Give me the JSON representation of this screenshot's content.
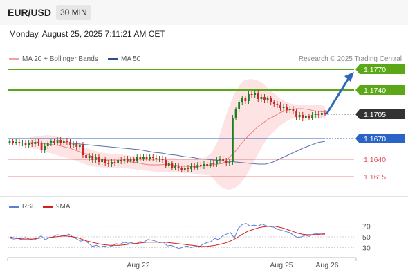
{
  "header": {
    "pair": "EUR/USD",
    "timeframe": "30 MIN"
  },
  "datetime": "Monday, August 25, 2025 7:11:21 AM CET",
  "legend": {
    "ma20_label": "MA 20 + Bollinger Bands",
    "ma50_label": "MA 50",
    "rsi_label": "RSI",
    "ma9_label": "9MA"
  },
  "research": "Research © 2025 Trading Central",
  "colors": {
    "bull": "#1e7d1e",
    "bear": "#c62828",
    "resistance": "#5aa817",
    "support": "#2b63c6",
    "minor_level": "#e05555",
    "bollinger_fill": "#fde0e0",
    "ma20": "#f08080",
    "ma50": "#5a6fa8",
    "current": "#333333",
    "arrow": "#2f67b8",
    "rsi": "#5b7fd6",
    "ma9": "#d32020"
  },
  "chart_data": [
    {
      "type": "candlestick",
      "title": "",
      "x_tick_labels": [
        "Aug 22",
        "Aug 25",
        "Aug 26"
      ],
      "ylim": [
        1.159,
        1.179
      ],
      "price_series": [
        1.1666,
        1.1664,
        1.1665,
        1.1663,
        1.1664,
        1.166,
        1.1664,
        1.1662,
        1.1665,
        1.1663,
        1.1653,
        1.1659,
        1.1663,
        1.1666,
        1.1664,
        1.1668,
        1.1664,
        1.1667,
        1.1665,
        1.166,
        1.1662,
        1.1658,
        1.1661,
        1.1646,
        1.1642,
        1.1645,
        1.1639,
        1.1644,
        1.1636,
        1.164,
        1.1635,
        1.1633,
        1.1636,
        1.1634,
        1.1639,
        1.1637,
        1.1641,
        1.1638,
        1.164,
        1.1638,
        1.1643,
        1.1641,
        1.1643,
        1.1641,
        1.1644,
        1.1642,
        1.164,
        1.1641,
        1.1639,
        1.1631,
        1.1634,
        1.1628,
        1.1631,
        1.1627,
        1.1625,
        1.1628,
        1.1626,
        1.163,
        1.1628,
        1.1632,
        1.163,
        1.1633,
        1.1631,
        1.1635,
        1.1633,
        1.1639,
        1.1641,
        1.1638,
        1.1634,
        1.1636,
        1.17,
        1.1712,
        1.1722,
        1.1728,
        1.1724,
        1.1734,
        1.1733,
        1.1736,
        1.1727,
        1.173,
        1.1725,
        1.1728,
        1.1722,
        1.172,
        1.1718,
        1.1714,
        1.1716,
        1.1711,
        1.1713,
        1.1709,
        1.1701,
        1.1704,
        1.1699,
        1.1702,
        1.17,
        1.1704,
        1.1706,
        1.1704,
        1.1707,
        1.1706
      ],
      "price_start": 1.1664,
      "ma20": [
        1.1664,
        1.1664,
        1.1663,
        1.1662,
        1.1661,
        1.166,
        1.1658,
        1.1656,
        1.1653,
        1.165,
        1.1647,
        1.1644,
        1.1641,
        1.1639,
        1.1638,
        1.1638,
        1.1638,
        1.1637,
        1.1636,
        1.1635,
        1.1633,
        1.1632,
        1.1632,
        1.1632,
        1.1633,
        1.1632,
        1.1631,
        1.163,
        1.163,
        1.1629,
        1.163,
        1.1631,
        1.1632,
        1.1633,
        1.1634,
        1.1642,
        1.165,
        1.166,
        1.167,
        1.1678,
        1.1686,
        1.1692,
        1.1698,
        1.1702,
        1.1707,
        1.171,
        1.1712,
        1.1713,
        1.1713,
        1.1712,
        1.171,
        1.1709,
        1.1708
      ],
      "bb_upper": [
        1.1672,
        1.1673,
        1.1674,
        1.1675,
        1.1674,
        1.1672,
        1.1669,
        1.1666,
        1.1662,
        1.1659,
        1.1656,
        1.1653,
        1.1651,
        1.1649,
        1.1648,
        1.1647,
        1.1647,
        1.1646,
        1.1645,
        1.1644,
        1.1643,
        1.1642,
        1.1641,
        1.164,
        1.1641,
        1.1642,
        1.1641,
        1.164,
        1.164,
        1.164,
        1.1641,
        1.1643,
        1.165,
        1.1665,
        1.169,
        1.1715,
        1.1735,
        1.1748,
        1.1755,
        1.1756,
        1.1754,
        1.175,
        1.1742,
        1.1735,
        1.1728,
        1.1723,
        1.172,
        1.1719,
        1.1718,
        1.1718,
        1.1718,
        1.1718,
        1.1717
      ],
      "bb_lower": [
        1.1656,
        1.1655,
        1.1653,
        1.165,
        1.1648,
        1.1645,
        1.1643,
        1.1641,
        1.1638,
        1.1635,
        1.1632,
        1.163,
        1.1629,
        1.1628,
        1.1627,
        1.1627,
        1.1627,
        1.1627,
        1.1626,
        1.1625,
        1.1624,
        1.1623,
        1.1622,
        1.1621,
        1.1622,
        1.1622,
        1.1621,
        1.162,
        1.162,
        1.1619,
        1.1619,
        1.1618,
        1.1615,
        1.1605,
        1.1598,
        1.1596,
        1.1598,
        1.1605,
        1.1615,
        1.163,
        1.1645,
        1.166,
        1.1672,
        1.168,
        1.1688,
        1.1694,
        1.1698,
        1.17,
        1.17,
        1.1699,
        1.1699,
        1.17,
        1.17
      ],
      "ma50": [
        1.1664,
        1.1663,
        1.1662,
        1.1661,
        1.166,
        1.1659,
        1.1658,
        1.1657,
        1.1656,
        1.1655,
        1.1654,
        1.1652,
        1.165,
        1.1649,
        1.1647,
        1.1646,
        1.1644,
        1.1643,
        1.1641,
        1.164,
        1.1639,
        1.1638,
        1.1637,
        1.1636,
        1.1635,
        1.1634,
        1.1633,
        1.1633,
        1.1636,
        1.1641,
        1.1646,
        1.1651,
        1.1656,
        1.166,
        1.1664,
        1.1666
      ],
      "levels": [
        {
          "value": 1.177,
          "label": "1.1770",
          "kind": "resistance"
        },
        {
          "value": 1.174,
          "label": "1.1740",
          "kind": "resistance"
        },
        {
          "value": 1.1705,
          "label": "1.1705",
          "kind": "current"
        },
        {
          "value": 1.167,
          "label": "1.1670",
          "kind": "support"
        },
        {
          "value": 1.164,
          "label": "1.1640",
          "kind": "minor"
        },
        {
          "value": 1.1615,
          "label": "1.1615",
          "kind": "minor"
        }
      ],
      "projection_arrow": {
        "from": 1.1705,
        "to": 1.1766
      }
    },
    {
      "type": "line",
      "title": "",
      "y_ticks": [
        30,
        50,
        70
      ],
      "ylim": [
        15,
        85
      ],
      "series": [
        {
          "name": "RSI",
          "values": [
            48,
            46,
            47,
            45,
            49,
            46,
            44,
            47,
            52,
            45,
            48,
            50,
            54,
            53,
            51,
            55,
            50,
            46,
            42,
            44,
            38,
            32,
            34,
            31,
            33,
            31,
            33,
            37,
            36,
            40,
            38,
            39,
            36,
            41,
            40,
            45,
            44,
            42,
            39,
            40,
            33,
            34,
            31,
            28,
            31,
            33,
            30,
            32,
            31,
            36,
            39,
            41,
            47,
            45,
            52,
            55,
            58,
            48,
            66,
            73,
            75,
            70,
            72,
            70,
            74,
            71,
            69,
            68,
            64,
            62,
            60,
            58,
            53,
            49,
            50,
            53,
            51,
            55,
            56,
            57,
            56
          ]
        },
        {
          "name": "9MA",
          "values": [
            50,
            48,
            47,
            46,
            46,
            46,
            47,
            48,
            48,
            49,
            50,
            51,
            52,
            51,
            50,
            48,
            45,
            42,
            40,
            38,
            36,
            35,
            34,
            34,
            34,
            35,
            36,
            37,
            38,
            39,
            40,
            40,
            40,
            40,
            40,
            39,
            38,
            37,
            36,
            35,
            34,
            33,
            32,
            32,
            33,
            34,
            36,
            38,
            41,
            45,
            50,
            55,
            60,
            63,
            66,
            68,
            69,
            70,
            70,
            68,
            66,
            63,
            60,
            57,
            55,
            54,
            54,
            54,
            55,
            55
          ]
        }
      ]
    }
  ]
}
